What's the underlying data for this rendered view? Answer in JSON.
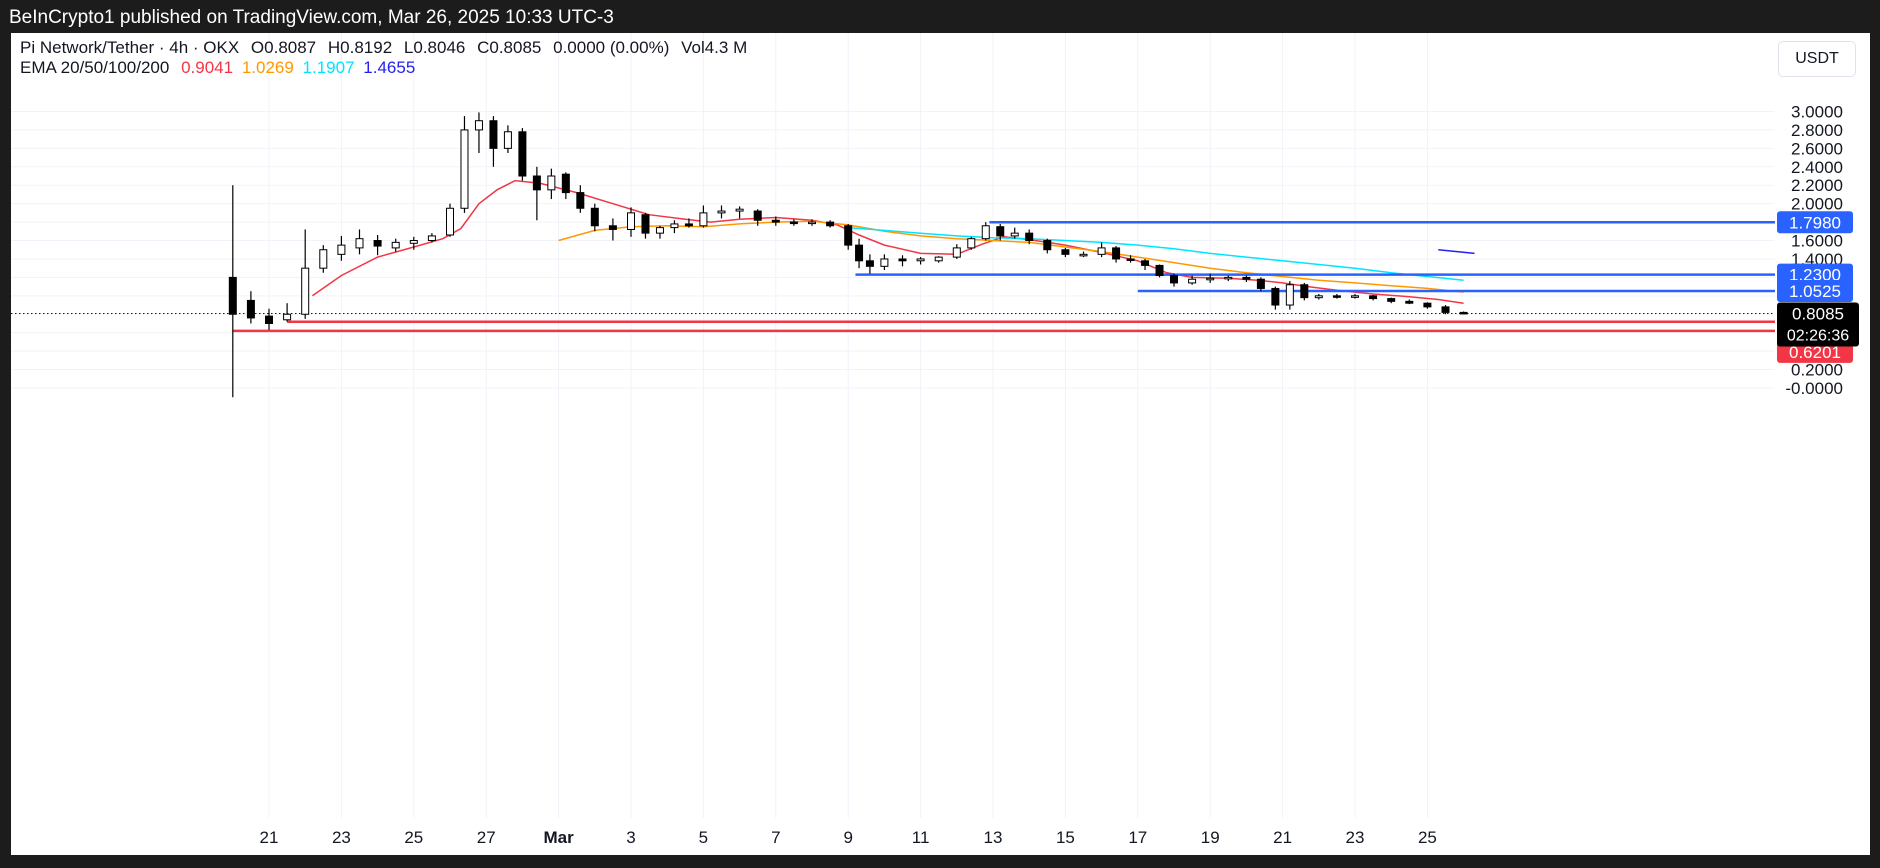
{
  "attribution": "BeInCrypto1 published on TradingView.com, Mar 26, 2025 10:33 UTC-3",
  "header": {
    "symbol": "Pi Network/Tether · 4h · OKX",
    "open": "O0.8087",
    "high": "H0.8192",
    "low": "L0.8046",
    "close": "C0.8085",
    "change": "0.0000 (0.00%)",
    "volume": "Vol4.3 M",
    "ema_label": "EMA 20/50/100/200",
    "ema_values": [
      {
        "value": "0.9041",
        "color": "#f23645"
      },
      {
        "value": "1.0269",
        "color": "#ff9800"
      },
      {
        "value": "1.1907",
        "color": "#00e5ff"
      },
      {
        "value": "1.4655",
        "color": "#2421f2"
      }
    ]
  },
  "currency": "USDT",
  "countdown": "02:26:36",
  "colors": {
    "up": "#ffffff",
    "down": "#000000",
    "support": "#f23645",
    "resistance": "#2962ff",
    "ema20": "#f23645",
    "ema50": "#ff9800",
    "ema100": "#00e5ff",
    "ema200": "#2421f2"
  },
  "chart_data": {
    "type": "candlestick",
    "ylim": [
      -0.2,
      3.0
    ],
    "y_ticks": [
      "3.0000",
      "2.8000",
      "2.6000",
      "2.4000",
      "2.2000",
      "2.0000",
      "1.8000",
      "1.6000",
      "1.4000",
      "1.2000",
      "1.0000",
      "0.8000",
      "0.6000",
      "0.4000",
      "0.2000",
      "-0.0000"
    ],
    "x_ticks": [
      {
        "label": "21",
        "day": 21
      },
      {
        "label": "23",
        "day": 23
      },
      {
        "label": "25",
        "day": 25
      },
      {
        "label": "27",
        "day": 27
      },
      {
        "label": "Mar",
        "day": 29,
        "bold": true
      },
      {
        "label": "3",
        "day": 31
      },
      {
        "label": "5",
        "day": 33
      },
      {
        "label": "7",
        "day": 35
      },
      {
        "label": "9",
        "day": 37
      },
      {
        "label": "11",
        "day": 39
      },
      {
        "label": "13",
        "day": 41
      },
      {
        "label": "15",
        "day": 43
      },
      {
        "label": "17",
        "day": 45
      },
      {
        "label": "19",
        "day": 47
      },
      {
        "label": "21",
        "day": 49
      },
      {
        "label": "23",
        "day": 51
      },
      {
        "label": "25",
        "day": 53
      }
    ],
    "last_price": "0.8085",
    "last_price_value": 0.8085,
    "levels": [
      {
        "value": 1.798,
        "label": "1.7980",
        "type": "resistance",
        "from_day": 40.9
      },
      {
        "value": 1.23,
        "label": "1.2300",
        "type": "resistance",
        "from_day": 37.2
      },
      {
        "value": 1.0525,
        "label": "1.0525",
        "type": "resistance",
        "from_day": 45.0
      },
      {
        "value": 0.7183,
        "label": "0.7183",
        "type": "support",
        "from_day": 21.5
      },
      {
        "value": 0.6201,
        "label": "0.6201",
        "type": "support",
        "from_day": 20.0
      }
    ],
    "ema_paths": {
      "ema20": [
        [
          22.2,
          1.0
        ],
        [
          23.0,
          1.22
        ],
        [
          24.0,
          1.42
        ],
        [
          25.0,
          1.53
        ],
        [
          25.8,
          1.62
        ],
        [
          26.3,
          1.73
        ],
        [
          26.8,
          2.0
        ],
        [
          27.3,
          2.15
        ],
        [
          27.8,
          2.25
        ],
        [
          28.5,
          2.22
        ],
        [
          29.5,
          2.12
        ],
        [
          30.5,
          2.0
        ],
        [
          31.5,
          1.88
        ],
        [
          32.5,
          1.83
        ],
        [
          33.2,
          1.8
        ],
        [
          34.0,
          1.83
        ],
        [
          35.0,
          1.85
        ],
        [
          36.0,
          1.82
        ],
        [
          36.7,
          1.77
        ],
        [
          37.3,
          1.66
        ],
        [
          38.0,
          1.55
        ],
        [
          39.0,
          1.46
        ],
        [
          40.0,
          1.45
        ],
        [
          40.7,
          1.56
        ],
        [
          41.3,
          1.64
        ],
        [
          42.0,
          1.61
        ],
        [
          43.0,
          1.55
        ],
        [
          44.0,
          1.47
        ],
        [
          45.0,
          1.38
        ],
        [
          45.8,
          1.25
        ],
        [
          46.5,
          1.2
        ],
        [
          47.5,
          1.19
        ],
        [
          48.3,
          1.17
        ],
        [
          49.0,
          1.14
        ],
        [
          49.7,
          1.1
        ],
        [
          50.5,
          1.06
        ],
        [
          51.5,
          1.02
        ],
        [
          52.5,
          0.99
        ],
        [
          53.3,
          0.96
        ],
        [
          54.0,
          0.92
        ]
      ],
      "ema50": [
        [
          29.0,
          1.6
        ],
        [
          30.0,
          1.71
        ],
        [
          31.0,
          1.75
        ],
        [
          32.0,
          1.76
        ],
        [
          33.0,
          1.75
        ],
        [
          34.0,
          1.78
        ],
        [
          35.0,
          1.8
        ],
        [
          36.0,
          1.81
        ],
        [
          37.0,
          1.77
        ],
        [
          38.0,
          1.7
        ],
        [
          39.0,
          1.65
        ],
        [
          40.0,
          1.62
        ],
        [
          41.0,
          1.6
        ],
        [
          42.0,
          1.58
        ],
        [
          43.0,
          1.53
        ],
        [
          44.0,
          1.48
        ],
        [
          45.0,
          1.42
        ],
        [
          46.0,
          1.36
        ],
        [
          47.0,
          1.3
        ],
        [
          48.0,
          1.25
        ],
        [
          49.0,
          1.21
        ],
        [
          50.0,
          1.17
        ],
        [
          51.0,
          1.14
        ],
        [
          52.0,
          1.11
        ],
        [
          53.0,
          1.08
        ],
        [
          54.0,
          1.04
        ]
      ],
      "ema100": [
        [
          37.0,
          1.74
        ],
        [
          38.0,
          1.71
        ],
        [
          39.0,
          1.68
        ],
        [
          40.0,
          1.65
        ],
        [
          41.0,
          1.63
        ],
        [
          42.0,
          1.62
        ],
        [
          43.0,
          1.6
        ],
        [
          44.0,
          1.58
        ],
        [
          45.0,
          1.55
        ],
        [
          46.0,
          1.51
        ],
        [
          47.0,
          1.46
        ],
        [
          48.0,
          1.42
        ],
        [
          49.0,
          1.38
        ],
        [
          50.0,
          1.34
        ],
        [
          51.0,
          1.3
        ],
        [
          52.0,
          1.25
        ],
        [
          53.0,
          1.21
        ],
        [
          54.0,
          1.17
        ]
      ],
      "ema200": [
        [
          53.3,
          1.5
        ],
        [
          54.3,
          1.46
        ]
      ]
    },
    "candles_daily": [
      {
        "day": 20.0,
        "o": 1.2,
        "h": 2.2,
        "l": -0.1,
        "c": 0.8
      },
      {
        "day": 20.5,
        "o": 0.95,
        "h": 1.05,
        "l": 0.7,
        "c": 0.76
      },
      {
        "day": 21.0,
        "o": 0.78,
        "h": 0.86,
        "l": 0.63,
        "c": 0.7
      },
      {
        "day": 21.5,
        "o": 0.74,
        "h": 0.92,
        "l": 0.72,
        "c": 0.8
      },
      {
        "day": 22.0,
        "o": 0.8,
        "h": 1.72,
        "l": 0.75,
        "c": 1.3
      },
      {
        "day": 22.5,
        "o": 1.3,
        "h": 1.55,
        "l": 1.25,
        "c": 1.5
      },
      {
        "day": 23.0,
        "o": 1.45,
        "h": 1.65,
        "l": 1.38,
        "c": 1.55
      },
      {
        "day": 23.5,
        "o": 1.52,
        "h": 1.72,
        "l": 1.45,
        "c": 1.62
      },
      {
        "day": 24.0,
        "o": 1.6,
        "h": 1.66,
        "l": 1.44,
        "c": 1.54
      },
      {
        "day": 24.5,
        "o": 1.52,
        "h": 1.62,
        "l": 1.48,
        "c": 1.58
      },
      {
        "day": 25.0,
        "o": 1.57,
        "h": 1.64,
        "l": 1.5,
        "c": 1.6
      },
      {
        "day": 25.5,
        "o": 1.6,
        "h": 1.68,
        "l": 1.58,
        "c": 1.65
      },
      {
        "day": 26.0,
        "o": 1.66,
        "h": 2.0,
        "l": 1.64,
        "c": 1.95
      },
      {
        "day": 26.4,
        "o": 1.95,
        "h": 2.95,
        "l": 1.9,
        "c": 2.8
      },
      {
        "day": 26.8,
        "o": 2.8,
        "h": 2.99,
        "l": 2.55,
        "c": 2.9
      },
      {
        "day": 27.2,
        "o": 2.9,
        "h": 2.95,
        "l": 2.4,
        "c": 2.6
      },
      {
        "day": 27.6,
        "o": 2.6,
        "h": 2.85,
        "l": 2.55,
        "c": 2.78
      },
      {
        "day": 28.0,
        "o": 2.78,
        "h": 2.82,
        "l": 2.25,
        "c": 2.3
      },
      {
        "day": 28.4,
        "o": 2.3,
        "h": 2.4,
        "l": 1.82,
        "c": 2.15
      },
      {
        "day": 28.8,
        "o": 2.15,
        "h": 2.38,
        "l": 2.05,
        "c": 2.3
      },
      {
        "day": 29.2,
        "o": 2.32,
        "h": 2.34,
        "l": 2.05,
        "c": 2.12
      },
      {
        "day": 29.6,
        "o": 2.12,
        "h": 2.2,
        "l": 1.9,
        "c": 1.95
      },
      {
        "day": 30.0,
        "o": 1.95,
        "h": 2.0,
        "l": 1.7,
        "c": 1.76
      },
      {
        "day": 30.5,
        "o": 1.76,
        "h": 1.84,
        "l": 1.6,
        "c": 1.72
      },
      {
        "day": 31.0,
        "o": 1.72,
        "h": 1.96,
        "l": 1.64,
        "c": 1.9
      },
      {
        "day": 31.4,
        "o": 1.88,
        "h": 1.9,
        "l": 1.62,
        "c": 1.68
      },
      {
        "day": 31.8,
        "o": 1.68,
        "h": 1.76,
        "l": 1.62,
        "c": 1.74
      },
      {
        "day": 32.2,
        "o": 1.74,
        "h": 1.82,
        "l": 1.68,
        "c": 1.78
      },
      {
        "day": 32.6,
        "o": 1.78,
        "h": 1.84,
        "l": 1.74,
        "c": 1.76
      },
      {
        "day": 33.0,
        "o": 1.76,
        "h": 1.98,
        "l": 1.74,
        "c": 1.9
      },
      {
        "day": 33.5,
        "o": 1.9,
        "h": 1.98,
        "l": 1.84,
        "c": 1.92
      },
      {
        "day": 34.0,
        "o": 1.92,
        "h": 1.97,
        "l": 1.84,
        "c": 1.94
      },
      {
        "day": 34.5,
        "o": 1.92,
        "h": 1.94,
        "l": 1.76,
        "c": 1.82
      },
      {
        "day": 35.0,
        "o": 1.82,
        "h": 1.86,
        "l": 1.76,
        "c": 1.8
      },
      {
        "day": 35.5,
        "o": 1.8,
        "h": 1.83,
        "l": 1.76,
        "c": 1.79
      },
      {
        "day": 36.0,
        "o": 1.79,
        "h": 1.83,
        "l": 1.76,
        "c": 1.8
      },
      {
        "day": 36.5,
        "o": 1.8,
        "h": 1.82,
        "l": 1.74,
        "c": 1.76
      },
      {
        "day": 37.0,
        "o": 1.76,
        "h": 1.78,
        "l": 1.5,
        "c": 1.55
      },
      {
        "day": 37.3,
        "o": 1.55,
        "h": 1.62,
        "l": 1.3,
        "c": 1.38
      },
      {
        "day": 37.6,
        "o": 1.38,
        "h": 1.45,
        "l": 1.24,
        "c": 1.32
      },
      {
        "day": 38.0,
        "o": 1.32,
        "h": 1.45,
        "l": 1.28,
        "c": 1.4
      },
      {
        "day": 38.5,
        "o": 1.4,
        "h": 1.44,
        "l": 1.32,
        "c": 1.38
      },
      {
        "day": 39.0,
        "o": 1.38,
        "h": 1.42,
        "l": 1.34,
        "c": 1.4
      },
      {
        "day": 39.5,
        "o": 1.38,
        "h": 1.43,
        "l": 1.36,
        "c": 1.42
      },
      {
        "day": 40.0,
        "o": 1.42,
        "h": 1.56,
        "l": 1.4,
        "c": 1.52
      },
      {
        "day": 40.4,
        "o": 1.52,
        "h": 1.64,
        "l": 1.5,
        "c": 1.62
      },
      {
        "day": 40.8,
        "o": 1.62,
        "h": 1.8,
        "l": 1.6,
        "c": 1.76
      },
      {
        "day": 41.2,
        "o": 1.75,
        "h": 1.78,
        "l": 1.6,
        "c": 1.65
      },
      {
        "day": 41.6,
        "o": 1.65,
        "h": 1.74,
        "l": 1.62,
        "c": 1.68
      },
      {
        "day": 42.0,
        "o": 1.68,
        "h": 1.72,
        "l": 1.56,
        "c": 1.6
      },
      {
        "day": 42.5,
        "o": 1.6,
        "h": 1.62,
        "l": 1.46,
        "c": 1.5
      },
      {
        "day": 43.0,
        "o": 1.5,
        "h": 1.52,
        "l": 1.42,
        "c": 1.45
      },
      {
        "day": 43.5,
        "o": 1.45,
        "h": 1.48,
        "l": 1.42,
        "c": 1.45
      },
      {
        "day": 44.0,
        "o": 1.45,
        "h": 1.58,
        "l": 1.42,
        "c": 1.52
      },
      {
        "day": 44.4,
        "o": 1.52,
        "h": 1.54,
        "l": 1.36,
        "c": 1.4
      },
      {
        "day": 44.8,
        "o": 1.4,
        "h": 1.44,
        "l": 1.36,
        "c": 1.39
      },
      {
        "day": 45.2,
        "o": 1.38,
        "h": 1.4,
        "l": 1.28,
        "c": 1.33
      },
      {
        "day": 45.6,
        "o": 1.33,
        "h": 1.34,
        "l": 1.2,
        "c": 1.22
      },
      {
        "day": 46.0,
        "o": 1.22,
        "h": 1.24,
        "l": 1.1,
        "c": 1.14
      },
      {
        "day": 46.5,
        "o": 1.14,
        "h": 1.22,
        "l": 1.12,
        "c": 1.18
      },
      {
        "day": 47.0,
        "o": 1.18,
        "h": 1.24,
        "l": 1.14,
        "c": 1.19
      },
      {
        "day": 47.5,
        "o": 1.19,
        "h": 1.22,
        "l": 1.16,
        "c": 1.2
      },
      {
        "day": 48.0,
        "o": 1.2,
        "h": 1.22,
        "l": 1.15,
        "c": 1.18
      },
      {
        "day": 48.4,
        "o": 1.18,
        "h": 1.2,
        "l": 1.05,
        "c": 1.08
      },
      {
        "day": 48.8,
        "o": 1.08,
        "h": 1.1,
        "l": 0.85,
        "c": 0.9
      },
      {
        "day": 49.2,
        "o": 0.9,
        "h": 1.16,
        "l": 0.85,
        "c": 1.12
      },
      {
        "day": 49.6,
        "o": 1.12,
        "h": 1.14,
        "l": 0.95,
        "c": 0.98
      },
      {
        "day": 50.0,
        "o": 0.98,
        "h": 1.02,
        "l": 0.96,
        "c": 1.0
      },
      {
        "day": 50.5,
        "o": 1.0,
        "h": 1.02,
        "l": 0.97,
        "c": 0.99
      },
      {
        "day": 51.0,
        "o": 0.99,
        "h": 1.02,
        "l": 0.97,
        "c": 1.0
      },
      {
        "day": 51.5,
        "o": 1.0,
        "h": 1.01,
        "l": 0.95,
        "c": 0.97
      },
      {
        "day": 52.0,
        "o": 0.97,
        "h": 0.98,
        "l": 0.92,
        "c": 0.94
      },
      {
        "day": 52.5,
        "o": 0.94,
        "h": 0.96,
        "l": 0.91,
        "c": 0.92
      },
      {
        "day": 53.0,
        "o": 0.92,
        "h": 0.93,
        "l": 0.86,
        "c": 0.88
      },
      {
        "day": 53.5,
        "o": 0.88,
        "h": 0.9,
        "l": 0.8,
        "c": 0.82
      },
      {
        "day": 54.0,
        "o": 0.82,
        "h": 0.83,
        "l": 0.8,
        "c": 0.81
      }
    ]
  }
}
